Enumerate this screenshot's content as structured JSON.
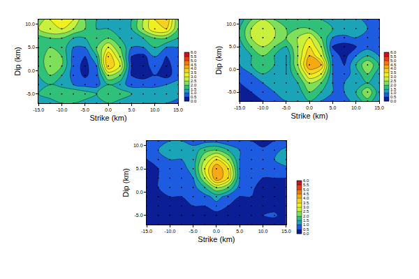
{
  "chart_data": [
    {
      "type": "contour",
      "xlabel": "Strike (km)",
      "ylabel": "Dip (km)",
      "marker": "dot",
      "x": [
        -15,
        -12.5,
        -10,
        -7.5,
        -5,
        -2.5,
        0,
        2.5,
        5,
        7.5,
        10,
        12.5,
        15
      ],
      "y": [
        -7,
        -5,
        -3,
        -1,
        1,
        3,
        5,
        7,
        9,
        11
      ],
      "z": [
        [
          1.0,
          1.2,
          1.5,
          1.5,
          1.3,
          1.2,
          1.5,
          1.3,
          1.2,
          1.0,
          1.0,
          1.0,
          0.8
        ],
        [
          1.5,
          1.8,
          2.0,
          2.0,
          1.8,
          1.5,
          2.0,
          1.8,
          1.5,
          1.5,
          1.5,
          1.5,
          1.2
        ],
        [
          1.5,
          1.5,
          1.3,
          1.0,
          0.8,
          0.8,
          1.5,
          1.2,
          0.8,
          0.8,
          0.8,
          1.0,
          1.2
        ],
        [
          1.5,
          2.0,
          1.5,
          0.8,
          0.4,
          0.8,
          2.5,
          2.0,
          0.5,
          0.3,
          0.5,
          0.3,
          0.8
        ],
        [
          1.5,
          2.5,
          2.0,
          0.8,
          0.3,
          1.0,
          4.0,
          3.0,
          0.5,
          0.2,
          0.8,
          0.3,
          0.8
        ],
        [
          1.5,
          2.5,
          2.0,
          0.8,
          0.5,
          1.5,
          4.0,
          2.5,
          0.5,
          0.3,
          1.0,
          0.5,
          0.8
        ],
        [
          1.5,
          2.0,
          1.8,
          1.0,
          1.0,
          2.0,
          3.0,
          2.0,
          1.0,
          1.0,
          1.5,
          1.0,
          1.0
        ],
        [
          1.8,
          2.0,
          2.0,
          1.5,
          1.5,
          2.0,
          2.0,
          1.5,
          1.5,
          1.5,
          2.0,
          2.0,
          1.5
        ],
        [
          2.5,
          3.0,
          3.0,
          2.5,
          2.0,
          1.5,
          1.5,
          1.5,
          1.5,
          2.5,
          3.5,
          3.5,
          2.0
        ],
        [
          2.0,
          3.0,
          3.5,
          3.0,
          2.0,
          1.5,
          1.5,
          1.5,
          1.5,
          2.5,
          3.5,
          4.0,
          2.0
        ]
      ],
      "xlim": [
        -15,
        15
      ],
      "ylim": [
        -7,
        11
      ],
      "xticks": [
        {
          "value": -15,
          "label": "-15.0"
        },
        {
          "value": -10,
          "label": "-10.0"
        },
        {
          "value": -5,
          "label": "-5.0"
        },
        {
          "value": 0,
          "label": "0.0"
        },
        {
          "value": 5,
          "label": "5.0"
        },
        {
          "value": 10,
          "label": "10.0"
        },
        {
          "value": 15,
          "label": "15.0"
        }
      ],
      "yticks": [
        {
          "value": -5,
          "label": "-5.0"
        },
        {
          "value": 0,
          "label": "0.0"
        },
        {
          "value": 5,
          "label": "5.0"
        },
        {
          "value": 10,
          "label": "10.0"
        }
      ],
      "zlim": [
        0,
        6
      ],
      "zticks": [
        {
          "value": 0,
          "label": "0.0"
        },
        {
          "value": 0.5,
          "label": "0.5"
        },
        {
          "value": 1,
          "label": "1.0"
        },
        {
          "value": 1.5,
          "label": "1.5"
        },
        {
          "value": 2,
          "label": "2.0"
        },
        {
          "value": 2.5,
          "label": "2.5"
        },
        {
          "value": 3,
          "label": "3.0"
        },
        {
          "value": 3.5,
          "label": "3.5"
        },
        {
          "value": 4,
          "label": "4.0"
        },
        {
          "value": 4.5,
          "label": "4.5"
        },
        {
          "value": 5,
          "label": "5.0"
        },
        {
          "value": 5.5,
          "label": "5.5"
        },
        {
          "value": 6,
          "label": "6.0"
        }
      ],
      "colors": [
        "#0b1e96",
        "#1d5be0",
        "#1ba3b8",
        "#2fc07a",
        "#7ee05a",
        "#c8f03c",
        "#f0f020",
        "#f5d21e",
        "#f5aa14",
        "#f07814",
        "#e63c14",
        "#c8141e"
      ]
    },
    {
      "type": "contour",
      "xlabel": "Strike (km)",
      "ylabel": "Dip (km)",
      "marker": "dot",
      "x": [
        -15,
        -12.5,
        -10,
        -7.5,
        -5,
        -2.5,
        0,
        2.5,
        5,
        7.5,
        10,
        12.5,
        15
      ],
      "y": [
        -7,
        -5,
        -3,
        -1,
        1,
        3,
        5,
        7,
        9,
        11
      ],
      "z": [
        [
          0.5,
          0.5,
          0.5,
          0.8,
          1.0,
          1.0,
          1.5,
          1.0,
          0.8,
          0.8,
          1.2,
          1.8,
          1.0
        ],
        [
          0.5,
          0.5,
          0.8,
          1.0,
          1.2,
          1.2,
          2.0,
          1.5,
          1.0,
          1.0,
          1.5,
          2.5,
          1.2
        ],
        [
          0.5,
          0.8,
          1.0,
          1.5,
          1.2,
          1.5,
          2.5,
          2.0,
          1.0,
          1.0,
          1.2,
          1.5,
          1.0
        ],
        [
          0.8,
          1.0,
          1.5,
          1.5,
          1.0,
          2.0,
          3.5,
          3.0,
          1.0,
          0.8,
          1.2,
          2.0,
          1.2
        ],
        [
          1.0,
          1.5,
          2.0,
          1.5,
          1.0,
          2.5,
          4.5,
          4.0,
          1.0,
          0.5,
          1.5,
          2.5,
          1.5
        ],
        [
          1.0,
          1.5,
          2.0,
          1.5,
          1.0,
          2.5,
          4.0,
          3.0,
          0.8,
          0.3,
          1.0,
          1.5,
          1.0
        ],
        [
          1.2,
          2.0,
          2.5,
          2.0,
          1.5,
          2.5,
          3.5,
          2.5,
          0.5,
          0.3,
          0.5,
          0.8,
          0.8
        ],
        [
          1.5,
          2.5,
          3.0,
          2.5,
          2.0,
          2.5,
          3.0,
          2.0,
          1.0,
          0.8,
          1.0,
          1.0,
          1.0
        ],
        [
          1.5,
          2.5,
          3.0,
          2.5,
          2.0,
          2.0,
          2.0,
          1.8,
          1.5,
          1.5,
          1.5,
          1.0,
          1.0
        ],
        [
          1.2,
          2.0,
          2.5,
          2.0,
          2.0,
          2.0,
          1.5,
          1.5,
          1.5,
          1.5,
          1.2,
          0.8,
          0.8
        ]
      ],
      "xlim": [
        -15,
        15
      ],
      "ylim": [
        -7,
        11
      ],
      "xticks": [
        {
          "value": -15,
          "label": "-15.0"
        },
        {
          "value": -10,
          "label": "-10.0"
        },
        {
          "value": -5,
          "label": "-5.0"
        },
        {
          "value": 0,
          "label": "0.0"
        },
        {
          "value": 5,
          "label": "5.0"
        },
        {
          "value": 10,
          "label": "10.0"
        },
        {
          "value": 15,
          "label": "15.0"
        }
      ],
      "yticks": [
        {
          "value": -5,
          "label": "-5.0"
        },
        {
          "value": 0,
          "label": "0.0"
        },
        {
          "value": 5,
          "label": "5.0"
        },
        {
          "value": 10,
          "label": "10.0"
        }
      ],
      "zlim": [
        0,
        6
      ],
      "zticks": [
        {
          "value": 0,
          "label": "0.0"
        },
        {
          "value": 0.5,
          "label": "0.5"
        },
        {
          "value": 1,
          "label": "1.0"
        },
        {
          "value": 1.5,
          "label": "1.5"
        },
        {
          "value": 2,
          "label": "2.0"
        },
        {
          "value": 2.5,
          "label": "2.5"
        },
        {
          "value": 3,
          "label": "3.0"
        },
        {
          "value": 3.5,
          "label": "3.5"
        },
        {
          "value": 4,
          "label": "4.0"
        },
        {
          "value": 4.5,
          "label": "4.5"
        },
        {
          "value": 5,
          "label": "5.0"
        },
        {
          "value": 5.5,
          "label": "5.5"
        },
        {
          "value": 6,
          "label": "6.0"
        }
      ],
      "colors": [
        "#0b1e96",
        "#1d5be0",
        "#1ba3b8",
        "#2fc07a",
        "#7ee05a",
        "#c8f03c",
        "#f0f020",
        "#f5d21e",
        "#f5aa14",
        "#f07814",
        "#e63c14",
        "#c8141e"
      ]
    },
    {
      "type": "contour",
      "xlabel": "Strike (km)",
      "ylabel": "Dip (km)",
      "marker": "dot",
      "x": [
        -15,
        -12.5,
        -10,
        -7.5,
        -5,
        -2.5,
        0,
        2.5,
        5,
        7.5,
        10,
        12.5,
        15
      ],
      "y": [
        -7,
        -5,
        -3,
        -1,
        1,
        3,
        5,
        7,
        9,
        11
      ],
      "z": [
        [
          0.2,
          0.2,
          0.2,
          0.2,
          0.2,
          0.2,
          0.2,
          0.2,
          0.2,
          0.2,
          0.2,
          0.2,
          0.2
        ],
        [
          0.2,
          0.2,
          0.2,
          0.2,
          0.3,
          0.3,
          0.3,
          0.3,
          0.3,
          0.3,
          0.5,
          0.6,
          0.2
        ],
        [
          0.3,
          0.3,
          0.3,
          0.5,
          0.5,
          0.5,
          0.8,
          0.5,
          0.5,
          0.3,
          0.3,
          0.3,
          0.2
        ],
        [
          0.3,
          0.3,
          0.5,
          0.5,
          0.6,
          0.8,
          1.2,
          0.8,
          0.5,
          0.5,
          0.3,
          0.3,
          0.2
        ],
        [
          0.3,
          0.5,
          0.6,
          0.6,
          0.8,
          1.5,
          2.5,
          2.0,
          0.8,
          0.6,
          0.3,
          0.3,
          0.3
        ],
        [
          0.3,
          0.5,
          0.6,
          0.6,
          1.0,
          2.5,
          4.5,
          3.5,
          1.0,
          0.8,
          0.5,
          0.5,
          0.5
        ],
        [
          0.3,
          0.5,
          0.6,
          0.8,
          1.2,
          3.0,
          4.5,
          3.5,
          1.0,
          1.0,
          0.6,
          0.8,
          0.8
        ],
        [
          0.5,
          0.8,
          1.0,
          1.0,
          1.2,
          2.5,
          3.5,
          2.5,
          1.0,
          1.0,
          0.8,
          1.0,
          1.5
        ],
        [
          0.8,
          1.0,
          1.2,
          1.2,
          1.2,
          1.8,
          2.0,
          1.5,
          1.0,
          0.8,
          0.6,
          0.8,
          1.2
        ],
        [
          0.5,
          0.8,
          1.0,
          1.0,
          0.8,
          0.8,
          0.8,
          0.6,
          0.5,
          0.5,
          0.3,
          0.5,
          0.5
        ]
      ],
      "xlim": [
        -15,
        15
      ],
      "ylim": [
        -7,
        11
      ],
      "xticks": [
        {
          "value": -15,
          "label": "-15.0"
        },
        {
          "value": -10,
          "label": "-10.0"
        },
        {
          "value": -5,
          "label": "-5.0"
        },
        {
          "value": 0,
          "label": "0.0"
        },
        {
          "value": 5,
          "label": "5.0"
        },
        {
          "value": 10,
          "label": "10.0"
        },
        {
          "value": 15,
          "label": "15.0"
        }
      ],
      "yticks": [
        {
          "value": -5,
          "label": "-5.0"
        },
        {
          "value": 0,
          "label": "0.0"
        },
        {
          "value": 5,
          "label": "5.0"
        },
        {
          "value": 10,
          "label": "10.0"
        }
      ],
      "zlim": [
        0,
        6
      ],
      "zticks": [
        {
          "value": 0,
          "label": "0.0"
        },
        {
          "value": 0.5,
          "label": "0.5"
        },
        {
          "value": 1,
          "label": "1.0"
        },
        {
          "value": 1.5,
          "label": "1.5"
        },
        {
          "value": 2,
          "label": "2.0"
        },
        {
          "value": 2.5,
          "label": "2.5"
        },
        {
          "value": 3,
          "label": "3.0"
        },
        {
          "value": 3.5,
          "label": "3.5"
        },
        {
          "value": 4,
          "label": "4.0"
        },
        {
          "value": 4.5,
          "label": "4.5"
        },
        {
          "value": 5,
          "label": "5.0"
        },
        {
          "value": 5.5,
          "label": "5.5"
        },
        {
          "value": 6,
          "label": "6.0"
        }
      ],
      "colors": [
        "#0b1e96",
        "#1d5be0",
        "#1ba3b8",
        "#2fc07a",
        "#7ee05a",
        "#c8f03c",
        "#f0f020",
        "#f5d21e",
        "#f5aa14",
        "#f07814",
        "#e63c14",
        "#c8141e"
      ]
    }
  ]
}
